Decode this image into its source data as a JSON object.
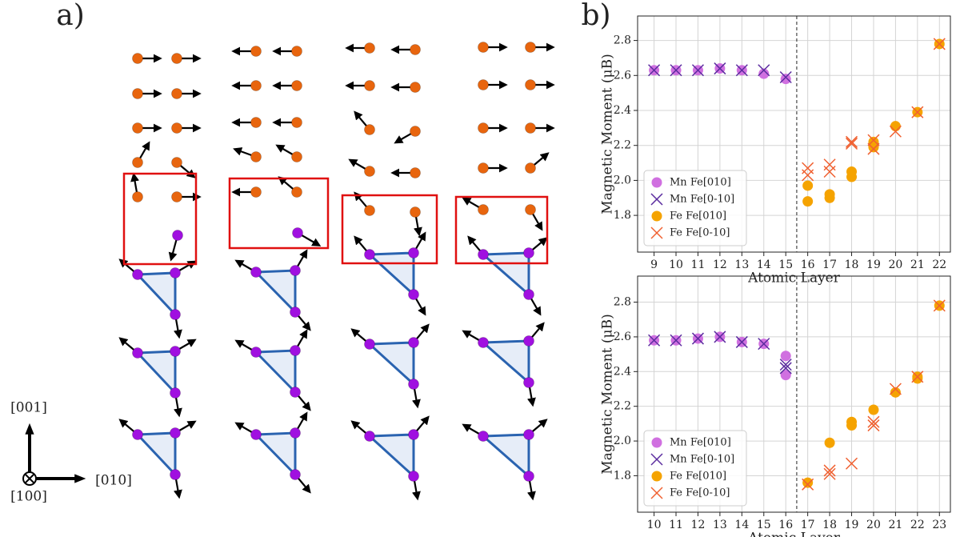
{
  "panels": {
    "a": "a)",
    "b": "b)"
  },
  "diagram": {
    "axis_labels": {
      "up": "[001]",
      "right": "[010]",
      "out": "[100]"
    }
  },
  "chart_data": [
    {
      "type": "scatter",
      "xlabel": "Atomic Layer",
      "ylabel": "Magnetic Moment (μB)",
      "xlim": [
        8.25,
        22.5
      ],
      "ylim": [
        1.59,
        2.94
      ],
      "xticks": [
        9,
        10,
        11,
        12,
        13,
        14,
        15,
        16,
        17,
        18,
        19,
        20,
        21,
        22
      ],
      "yticks": [
        1.8,
        {
          "value": 2,
          "label": "2.0"
        },
        2.2,
        2.4,
        2.6,
        2.8
      ],
      "grid": true,
      "legend": "lower left",
      "vline": 15.5,
      "series": [
        {
          "name": "Mn Fe[010]",
          "color": "#d070e0",
          "marker": "o",
          "x": [
            9,
            10,
            11,
            12,
            13,
            14,
            15
          ],
          "values": [
            2.63,
            2.63,
            2.63,
            2.64,
            2.63,
            2.61,
            2.58
          ]
        },
        {
          "name": "Mn Fe[0-10]",
          "color": "#5b2c9f",
          "marker": "x",
          "x": [
            9,
            10,
            11,
            12,
            13,
            14,
            15
          ],
          "values": [
            2.63,
            2.63,
            2.63,
            2.64,
            2.63,
            2.63,
            2.59
          ]
        },
        {
          "name": "Fe Fe[010]",
          "color": "#f5a300",
          "marker": "o",
          "x": [
            16,
            16,
            17,
            17,
            18,
            18,
            19,
            19,
            20,
            21,
            22
          ],
          "values": [
            1.88,
            1.97,
            1.9,
            1.92,
            2.02,
            2.05,
            2.19,
            2.22,
            2.31,
            2.39,
            2.78
          ]
        },
        {
          "name": "Fe Fe[0-10]",
          "color": "#f06030",
          "marker": "x",
          "x": [
            16,
            16,
            17,
            17,
            18,
            18,
            19,
            19,
            20,
            21,
            22
          ],
          "values": [
            2.03,
            2.07,
            2.05,
            2.09,
            2.21,
            2.22,
            2.18,
            2.23,
            2.28,
            2.39,
            2.78
          ]
        }
      ]
    },
    {
      "type": "scatter",
      "xlabel": "Atomic Layer",
      "ylabel": "Magnetic Moment (μB)",
      "xlim": [
        9.25,
        23.5
      ],
      "ylim": [
        1.59,
        2.95
      ],
      "xticks": [
        10,
        11,
        12,
        13,
        14,
        15,
        16,
        17,
        18,
        19,
        20,
        21,
        22,
        23
      ],
      "yticks": [
        1.8,
        {
          "value": 2,
          "label": "2.0"
        },
        2.2,
        2.4,
        2.6,
        2.8
      ],
      "grid": true,
      "legend": "lower left",
      "vline": 16.5,
      "series": [
        {
          "name": "Mn Fe[010]",
          "color": "#d070e0",
          "marker": "o",
          "x": [
            10,
            11,
            12,
            13,
            14,
            15,
            16,
            16
          ],
          "values": [
            2.58,
            2.58,
            2.59,
            2.6,
            2.57,
            2.56,
            2.49,
            2.38
          ]
        },
        {
          "name": "Mn Fe[0-10]",
          "color": "#5b2c9f",
          "marker": "x",
          "x": [
            10,
            11,
            12,
            13,
            14,
            15,
            16,
            16
          ],
          "values": [
            2.58,
            2.58,
            2.59,
            2.6,
            2.57,
            2.56,
            2.44,
            2.42
          ]
        },
        {
          "name": "Fe Fe[010]",
          "color": "#f5a300",
          "marker": "o",
          "x": [
            17,
            18,
            19,
            19,
            20,
            21,
            22,
            22,
            23
          ],
          "values": [
            1.76,
            1.99,
            2.09,
            2.11,
            2.18,
            2.28,
            2.36,
            2.37,
            2.78
          ]
        },
        {
          "name": "Fe Fe[0-10]",
          "color": "#f06030",
          "marker": "x",
          "x": [
            17,
            18,
            18,
            19,
            20,
            20,
            21,
            22,
            23
          ],
          "values": [
            1.75,
            1.81,
            1.83,
            1.87,
            2.09,
            2.11,
            2.3,
            2.37,
            2.78
          ]
        }
      ]
    }
  ]
}
